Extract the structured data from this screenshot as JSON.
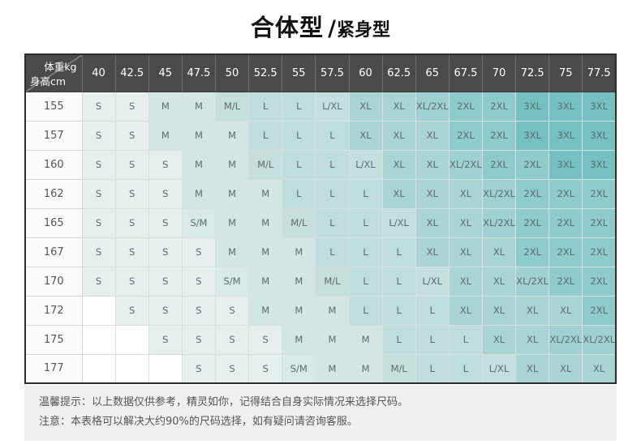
{
  "title": {
    "main": "合体型",
    "slash": "/",
    "sub": "紧身型"
  },
  "chart_data": {
    "type": "table",
    "title": "合体型/紧身型",
    "corner": {
      "top_right": "体重kg",
      "bottom_left": "身高cm"
    },
    "columns": [
      "40",
      "42.5",
      "45",
      "47.5",
      "50",
      "52.5",
      "55",
      "57.5",
      "60",
      "62.5",
      "65",
      "67.5",
      "70",
      "72.5",
      "75",
      "77.5"
    ],
    "rows": [
      {
        "height": "155",
        "sizes": [
          "S",
          "S",
          "M",
          "M",
          "M/L",
          "L",
          "L",
          "L/XL",
          "XL",
          "XL",
          "XL/2XL",
          "2XL",
          "2XL",
          "3XL",
          "3XL",
          "3XL"
        ]
      },
      {
        "height": "157",
        "sizes": [
          "S",
          "S",
          "M",
          "M",
          "M",
          "L",
          "L",
          "L",
          "XL",
          "XL",
          "XL",
          "2XL",
          "2XL",
          "3XL",
          "3XL",
          "3XL"
        ]
      },
      {
        "height": "160",
        "sizes": [
          "S",
          "S",
          "S",
          "M",
          "M",
          "M/L",
          "L",
          "L",
          "L/XL",
          "XL",
          "XL",
          "XL/2XL",
          "2XL",
          "2XL",
          "3XL",
          "3XL"
        ]
      },
      {
        "height": "162",
        "sizes": [
          "S",
          "S",
          "S",
          "M",
          "M",
          "M",
          "L",
          "L",
          "L",
          "XL",
          "XL",
          "XL",
          "XL/2XL",
          "2XL",
          "2XL",
          "2XL"
        ]
      },
      {
        "height": "165",
        "sizes": [
          "S",
          "S",
          "S",
          "S/M",
          "M",
          "M",
          "M/L",
          "L",
          "L",
          "L/XL",
          "XL",
          "XL",
          "XL/2XL",
          "2XL",
          "2XL",
          "2XL"
        ]
      },
      {
        "height": "167",
        "sizes": [
          "S",
          "S",
          "S",
          "S",
          "M",
          "M",
          "M",
          "L",
          "L",
          "L",
          "XL",
          "XL",
          "XL",
          "2XL",
          "2XL",
          "2XL"
        ]
      },
      {
        "height": "170",
        "sizes": [
          "S",
          "S",
          "S",
          "S",
          "S/M",
          "M",
          "M",
          "M/L",
          "L",
          "L",
          "L/XL",
          "XL",
          "XL",
          "XL/2XL",
          "2XL",
          "2XL"
        ]
      },
      {
        "height": "172",
        "sizes": [
          "",
          "S",
          "S",
          "S",
          "S",
          "M",
          "M",
          "M",
          "L",
          "L",
          "L",
          "XL",
          "XL",
          "XL",
          "XL",
          "2XL"
        ]
      },
      {
        "height": "175",
        "sizes": [
          "",
          "",
          "S",
          "S",
          "S",
          "S",
          "M",
          "M",
          "M",
          "L",
          "L",
          "L",
          "XL",
          "XL",
          "XL/2XL",
          "XL/2XL"
        ]
      },
      {
        "height": "177",
        "sizes": [
          "",
          "",
          "",
          "S",
          "S",
          "S",
          "S/M",
          "M",
          "M",
          "M/L",
          "L",
          "L",
          "L/XL",
          "XL",
          "XL",
          "XL"
        ]
      }
    ]
  },
  "footer": {
    "line1": "温馨提示：以上数据仅供参考，精灵如你，记得结合自身实际情况来选择尺码。",
    "line2": "注意：本表格可以解决大约90%的尺码选择，如有疑问请咨询客服。"
  },
  "colors": {
    "header_bg": "#4a4a4a",
    "header_text": "#ffffff",
    "table_border": "#2e2e2e",
    "footer_bg": "#efefef",
    "size_colors": {
      "": "#ffffff",
      "S": "#e5efee",
      "S/M": "#d8e9e8",
      "M": "#d2e6e4",
      "M/L": "#c5dfdd",
      "L": "#bfdddc",
      "L/XL": "#c3e0df",
      "XL": "#a8d4d4",
      "XL/2XL": "#a0d1d2",
      "2XL": "#8ecbcd",
      "3XL": "#74c0c3"
    }
  }
}
